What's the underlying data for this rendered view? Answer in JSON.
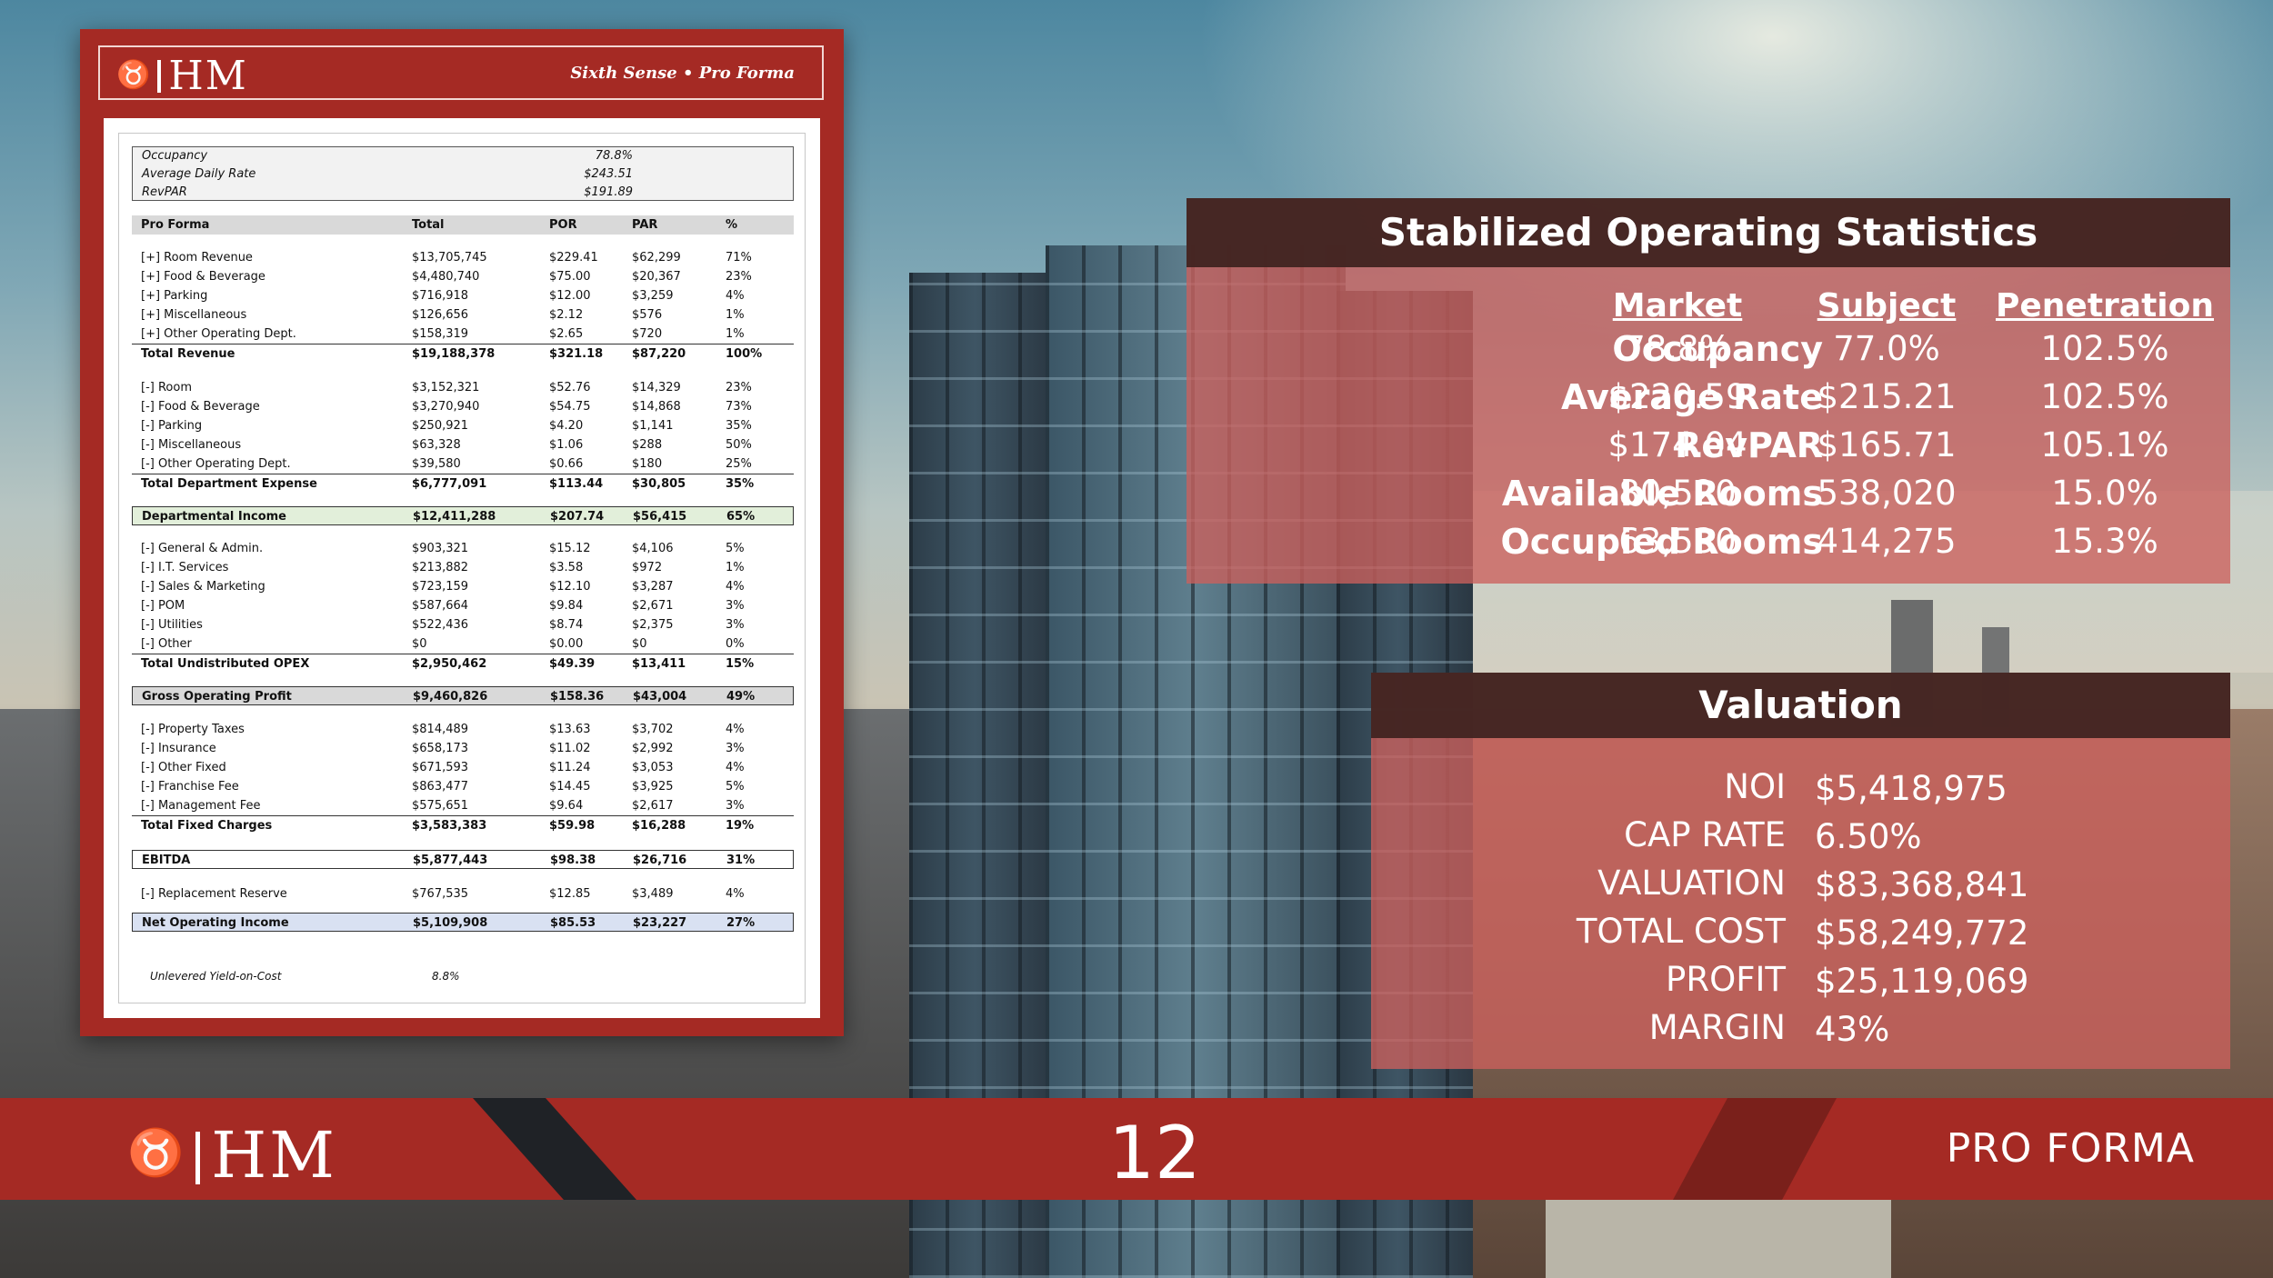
{
  "brand": {
    "logo_text": "HM"
  },
  "sheet": {
    "subtitle": "Sixth Sense • Pro Forma",
    "stats": [
      {
        "label": "Occupancy",
        "value": "78.8%"
      },
      {
        "label": "Average Daily Rate",
        "value": "$243.51"
      },
      {
        "label": "RevPAR",
        "value": "$191.89"
      }
    ],
    "header": {
      "label": "Pro Forma",
      "total": "Total",
      "por": "POR",
      "par": "PAR",
      "pct": "%"
    },
    "rows": [
      {
        "label": "[+] Room Revenue",
        "total": "$13,705,745",
        "por": "$229.41",
        "par": "$62,299",
        "pct": "71%"
      },
      {
        "label": "[+] Food & Beverage",
        "total": "$4,480,740",
        "por": "$75.00",
        "par": "$20,367",
        "pct": "23%"
      },
      {
        "label": "[+] Parking",
        "total": "$716,918",
        "por": "$12.00",
        "par": "$3,259",
        "pct": "4%"
      },
      {
        "label": "[+] Miscellaneous",
        "total": "$126,656",
        "por": "$2.12",
        "par": "$576",
        "pct": "1%"
      },
      {
        "label": "[+] Other Operating Dept.",
        "total": "$158,319",
        "por": "$2.65",
        "par": "$720",
        "pct": "1%"
      },
      {
        "label": "Total Revenue",
        "total": "$19,188,378",
        "por": "$321.18",
        "par": "$87,220",
        "pct": "100%"
      },
      {
        "label": "[-] Room",
        "total": "$3,152,321",
        "por": "$52.76",
        "par": "$14,329",
        "pct": "23%"
      },
      {
        "label": "[-] Food & Beverage",
        "total": "$3,270,940",
        "por": "$54.75",
        "par": "$14,868",
        "pct": "73%"
      },
      {
        "label": "[-] Parking",
        "total": "$250,921",
        "por": "$4.20",
        "par": "$1,141",
        "pct": "35%"
      },
      {
        "label": "[-] Miscellaneous",
        "total": "$63,328",
        "por": "$1.06",
        "par": "$288",
        "pct": "50%"
      },
      {
        "label": "[-] Other Operating Dept.",
        "total": "$39,580",
        "por": "$0.66",
        "par": "$180",
        "pct": "25%"
      },
      {
        "label": "Total Department Expense",
        "total": "$6,777,091",
        "por": "$113.44",
        "par": "$30,805",
        "pct": "35%"
      },
      {
        "label": "Departmental Income",
        "total": "$12,411,288",
        "por": "$207.74",
        "par": "$56,415",
        "pct": "65%"
      },
      {
        "label": "[-] General & Admin.",
        "total": "$903,321",
        "por": "$15.12",
        "par": "$4,106",
        "pct": "5%"
      },
      {
        "label": "[-] I.T. Services",
        "total": "$213,882",
        "por": "$3.58",
        "par": "$972",
        "pct": "1%"
      },
      {
        "label": "[-] Sales & Marketing",
        "total": "$723,159",
        "por": "$12.10",
        "par": "$3,287",
        "pct": "4%"
      },
      {
        "label": "[-] POM",
        "total": "$587,664",
        "por": "$9.84",
        "par": "$2,671",
        "pct": "3%"
      },
      {
        "label": "[-] Utilities",
        "total": "$522,436",
        "por": "$8.74",
        "par": "$2,375",
        "pct": "3%"
      },
      {
        "label": "[-] Other",
        "total": "$0",
        "por": "$0.00",
        "par": "$0",
        "pct": "0%"
      },
      {
        "label": "Total Undistributed OPEX",
        "total": "$2,950,462",
        "por": "$49.39",
        "par": "$13,411",
        "pct": "15%"
      },
      {
        "label": "Gross Operating Profit",
        "total": "$9,460,826",
        "por": "$158.36",
        "par": "$43,004",
        "pct": "49%"
      },
      {
        "label": "[-] Property Taxes",
        "total": "$814,489",
        "por": "$13.63",
        "par": "$3,702",
        "pct": "4%"
      },
      {
        "label": "[-] Insurance",
        "total": "$658,173",
        "por": "$11.02",
        "par": "$2,992",
        "pct": "3%"
      },
      {
        "label": "[-] Other Fixed",
        "total": "$671,593",
        "por": "$11.24",
        "par": "$3,053",
        "pct": "4%"
      },
      {
        "label": "[-] Franchise Fee",
        "total": "$863,477",
        "por": "$14.45",
        "par": "$3,925",
        "pct": "5%"
      },
      {
        "label": "[-] Management Fee",
        "total": "$575,651",
        "por": "$9.64",
        "par": "$2,617",
        "pct": "3%"
      },
      {
        "label": "Total Fixed Charges",
        "total": "$3,583,383",
        "por": "$59.98",
        "par": "$16,288",
        "pct": "19%"
      },
      {
        "label": "EBITDA",
        "total": "$5,877,443",
        "por": "$98.38",
        "par": "$26,716",
        "pct": "31%"
      },
      {
        "label": "[-] Replacement Reserve",
        "total": "$767,535",
        "por": "$12.85",
        "par": "$3,489",
        "pct": "4%"
      },
      {
        "label": "Net Operating Income",
        "total": "$5,109,908",
        "por": "$85.53",
        "par": "$23,227",
        "pct": "27%"
      }
    ],
    "yield_note": {
      "label": "Unlevered Yield-on-Cost",
      "value": "8.8%"
    }
  },
  "stabilized": {
    "title": "Stabilized Operating Statistics",
    "columns": [
      "Market",
      "Subject",
      "Penetration"
    ],
    "rows": [
      {
        "label": "Occupancy",
        "values": [
          "78.8%",
          "77.0%",
          "102.5%"
        ]
      },
      {
        "label": "Average Rate",
        "values": [
          "$220.59",
          "$215.21",
          "102.5%"
        ]
      },
      {
        "label": "RevPAR",
        "values": [
          "$174.04",
          "$165.71",
          "105.1%"
        ]
      },
      {
        "label": "Available Rooms",
        "values": [
          "80,520",
          "538,020",
          "15.0%"
        ]
      },
      {
        "label": "Occupied Rooms",
        "values": [
          "63,530",
          "414,275",
          "15.3%"
        ]
      }
    ]
  },
  "valuation": {
    "title": "Valuation",
    "rows": [
      {
        "label": "NOI",
        "value": "$5,418,975"
      },
      {
        "label": "CAP RATE",
        "value": "6.50%"
      },
      {
        "label": "VALUATION",
        "value": "$83,368,841"
      },
      {
        "label": "TOTAL COST",
        "value": "$58,249,772"
      },
      {
        "label": "PROFIT",
        "value": "$25,119,069"
      },
      {
        "label": "MARGIN",
        "value": "43%"
      }
    ]
  },
  "footer": {
    "page_number": "12",
    "section": "PRO FORMA"
  },
  "colors": {
    "brand_red": "#a52a24",
    "panel_dark": "#42241f",
    "panel_tint": "#cc605c"
  }
}
